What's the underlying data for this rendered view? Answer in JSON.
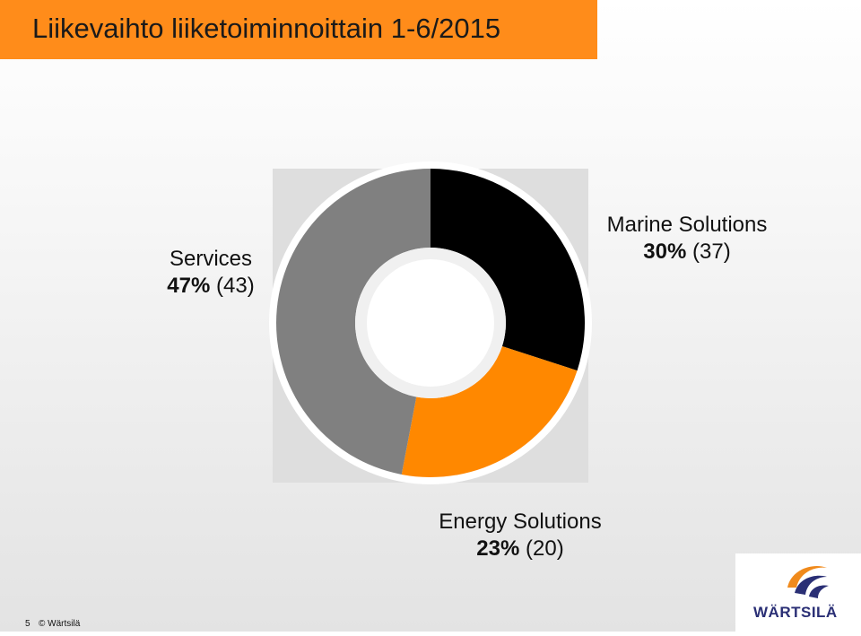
{
  "slide": {
    "title": "Liikevaihto liiketoiminnoittain 1-6/2015",
    "page_number": "5",
    "copyright": "© Wärtsilä",
    "logo_text": "WÄRTSILÄ"
  },
  "colors": {
    "title_bar": "#ff8c1a",
    "marine": "#000000",
    "energy": "#ff8800",
    "services": "#808080",
    "logo": "#2a2f75"
  },
  "chart_data": {
    "type": "pie",
    "donut": true,
    "title": "Liikevaihto liiketoiminnoittain 1-6/2015",
    "legend": "none",
    "series": [
      {
        "name": "Marine Solutions",
        "value": 30,
        "value_label": "30%",
        "previous_label": "(37)",
        "color": "#000000"
      },
      {
        "name": "Energy Solutions",
        "value": 23,
        "value_label": "23%",
        "previous_label": "(20)",
        "color": "#ff8800"
      },
      {
        "name": "Services",
        "value": 47,
        "value_label": "47%",
        "previous_label": "(43)",
        "color": "#808080"
      }
    ]
  }
}
